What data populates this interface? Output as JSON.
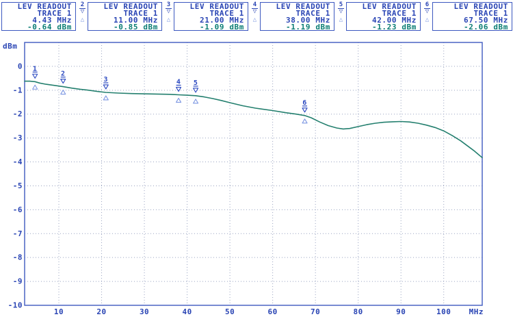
{
  "colors": {
    "blue": "#2944b4",
    "teal": "#0b7d74",
    "axis": "#4a64c4",
    "grid": "#98a2c0",
    "trace": "#237f6e",
    "marker": "#2a48c0",
    "delta": "#7d97e2",
    "background": "#ffffff"
  },
  "icons": {
    "marker_down": "▽",
    "delta_up": "△"
  },
  "header": {
    "readouts": [
      {
        "marker": "1",
        "line1": "LEV READOUT",
        "line2": "TRACE 1",
        "freq": "4.43 MHz",
        "level": "-0.64 dBm"
      },
      {
        "marker": "2",
        "line1": "LEV READOUT",
        "line2": "TRACE 1",
        "freq": "11.00 MHz",
        "level": "-0.85 dBm"
      },
      {
        "marker": "3",
        "line1": "LEV READOUT",
        "line2": "TRACE 1",
        "freq": "21.00 MHz",
        "level": "-1.09 dBm"
      },
      {
        "marker": "4",
        "line1": "LEV READOUT",
        "line2": "TRACE 1",
        "freq": "38.00 MHz",
        "level": "-1.19 dBm"
      },
      {
        "marker": "5",
        "line1": "LEV READOUT",
        "line2": "TRACE 1",
        "freq": "42.00 MHz",
        "level": "-1.23 dBm"
      },
      {
        "marker": "6",
        "line1": "LEV READOUT",
        "line2": "TRACE 1",
        "freq": "67.50 MHz",
        "level": "-2.06 dBm"
      }
    ]
  },
  "chart_data": {
    "type": "line",
    "title": "",
    "units": {
      "y": "dBm",
      "x": "MHz"
    },
    "xlim": [
      2,
      109
    ],
    "ylim": [
      -10,
      1
    ],
    "grid": "dotted",
    "x_tick_values": [
      10,
      20,
      30,
      40,
      50,
      60,
      70,
      80,
      90,
      100
    ],
    "x_tick_labels": [
      "10",
      "20",
      "30",
      "40",
      "50",
      "60",
      "70",
      "80",
      "90",
      "100"
    ],
    "y_tick_values": [
      0,
      -1,
      -2,
      -3,
      -4,
      -5,
      -6,
      -7,
      -8,
      -9,
      -10
    ],
    "y_tick_labels": [
      "0",
      "-1",
      "-2",
      "-3",
      "-4",
      "-5",
      "-6",
      "-7",
      "-8",
      "-9",
      "-10"
    ],
    "series": [
      {
        "name": "TRACE 1",
        "x": [
          2,
          3.2,
          4.43,
          5.5,
          7,
          9,
          11,
          13,
          15,
          17,
          19,
          21,
          24,
          27,
          30,
          33,
          36,
          38,
          40,
          42,
          44,
          46,
          48,
          50,
          53,
          56,
          60,
          63,
          65.5,
          67.5,
          69,
          71,
          73,
          75,
          76.5,
          78,
          80,
          82,
          84,
          86,
          88,
          90,
          92,
          94,
          96,
          98,
          100,
          102,
          104,
          105.5,
          107,
          108,
          109
        ],
        "y": [
          -0.62,
          -0.62,
          -0.64,
          -0.7,
          -0.75,
          -0.8,
          -0.85,
          -0.91,
          -0.96,
          -1.0,
          -1.05,
          -1.09,
          -1.12,
          -1.14,
          -1.15,
          -1.16,
          -1.17,
          -1.19,
          -1.21,
          -1.23,
          -1.28,
          -1.35,
          -1.43,
          -1.52,
          -1.65,
          -1.75,
          -1.85,
          -1.94,
          -2.0,
          -2.06,
          -2.15,
          -2.33,
          -2.48,
          -2.58,
          -2.62,
          -2.6,
          -2.52,
          -2.44,
          -2.38,
          -2.34,
          -2.32,
          -2.31,
          -2.33,
          -2.38,
          -2.46,
          -2.56,
          -2.7,
          -2.9,
          -3.12,
          -3.32,
          -3.52,
          -3.67,
          -3.82
        ]
      }
    ],
    "markers": [
      {
        "n": "1",
        "freq": 4.43,
        "level": -0.64
      },
      {
        "n": "2",
        "freq": 11.0,
        "level": -0.85
      },
      {
        "n": "3",
        "freq": 21.0,
        "level": -1.09
      },
      {
        "n": "4",
        "freq": 38.0,
        "level": -1.19
      },
      {
        "n": "5",
        "freq": 42.0,
        "level": -1.23
      },
      {
        "n": "6",
        "freq": 67.5,
        "level": -2.06
      }
    ]
  }
}
